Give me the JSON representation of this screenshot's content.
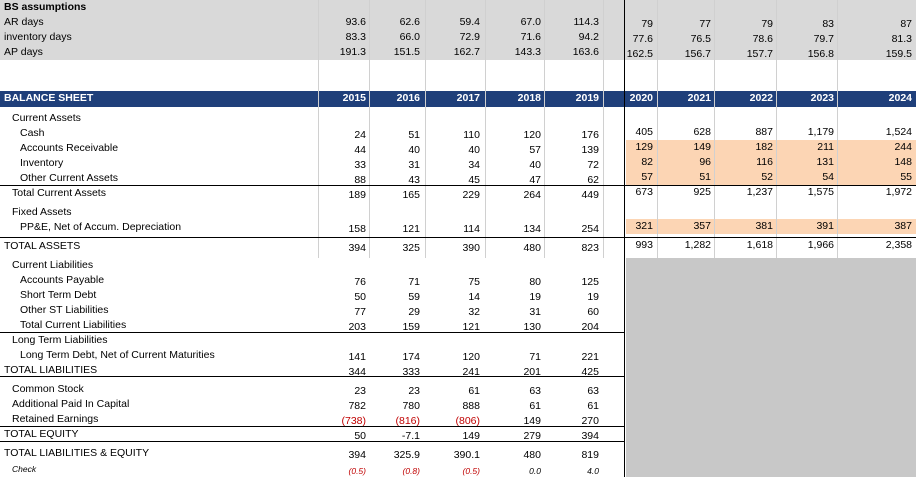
{
  "colors": {
    "assumption_bg": "#d9d9d9",
    "header_bg": "#1f3f7a",
    "projection_fill": "#fcd5b4",
    "gray_block": "#c8c8c8",
    "negative": "#c00000"
  },
  "assumptions": {
    "title": "BS assumptions",
    "rows": [
      {
        "label": "AR days",
        "values": [
          "93.6",
          "62.6",
          "59.4",
          "67.0",
          "114.3",
          "79",
          "77",
          "79",
          "83",
          "87"
        ]
      },
      {
        "label": "inventory days",
        "values": [
          "83.3",
          "66.0",
          "72.9",
          "71.6",
          "94.2",
          "77.6",
          "76.5",
          "78.6",
          "79.7",
          "81.3"
        ]
      },
      {
        "label": "AP days",
        "values": [
          "191.3",
          "151.5",
          "162.7",
          "143.3",
          "163.6",
          "162.5",
          "156.7",
          "157.7",
          "156.8",
          "159.5"
        ]
      }
    ]
  },
  "balance_sheet": {
    "title": "BALANCE SHEET",
    "years": [
      "2015",
      "2016",
      "2017",
      "2018",
      "2019",
      "2020",
      "2021",
      "2022",
      "2023",
      "2024"
    ],
    "rows": [
      {
        "label": "Current Assets",
        "values": []
      },
      {
        "label": "Cash",
        "values": [
          "24",
          "51",
          "110",
          "120",
          "176",
          "405",
          "628",
          "887",
          "1,179",
          "1,524"
        ]
      },
      {
        "label": "Accounts Receivable",
        "values": [
          "44",
          "40",
          "40",
          "57",
          "139",
          "129",
          "149",
          "182",
          "211",
          "244"
        ]
      },
      {
        "label": "Inventory",
        "values": [
          "33",
          "31",
          "34",
          "40",
          "72",
          "82",
          "96",
          "116",
          "131",
          "148"
        ]
      },
      {
        "label": "Other Current Assets",
        "values": [
          "88",
          "43",
          "45",
          "47",
          "62",
          "57",
          "51",
          "52",
          "54",
          "55"
        ]
      },
      {
        "label": "Total Current Assets",
        "values": [
          "189",
          "165",
          "229",
          "264",
          "449",
          "673",
          "925",
          "1,237",
          "1,575",
          "1,972"
        ]
      },
      {
        "label": "Fixed Assets",
        "values": []
      },
      {
        "label": "PP&E, Net of Accum. Depreciation",
        "values": [
          "158",
          "121",
          "114",
          "134",
          "254",
          "321",
          "357",
          "381",
          "391",
          "387"
        ]
      },
      {
        "label": "TOTAL ASSETS",
        "values": [
          "394",
          "325",
          "390",
          "480",
          "823",
          "993",
          "1,282",
          "1,618",
          "1,966",
          "2,358"
        ]
      },
      {
        "label": "Current Liabilities",
        "values": []
      },
      {
        "label": "Accounts Payable",
        "values": [
          "76",
          "71",
          "75",
          "80",
          "125"
        ]
      },
      {
        "label": "Short Term Debt",
        "values": [
          "50",
          "59",
          "14",
          "19",
          "19"
        ]
      },
      {
        "label": "Other ST Liabilities",
        "values": [
          "77",
          "29",
          "32",
          "31",
          "60"
        ]
      },
      {
        "label": "Total Current Liabilities",
        "values": [
          "203",
          "159",
          "121",
          "130",
          "204"
        ]
      },
      {
        "label": "Long Term Liabilities",
        "values": []
      },
      {
        "label": "Long Term Debt, Net of Current Maturities",
        "values": [
          "141",
          "174",
          "120",
          "71",
          "221"
        ]
      },
      {
        "label": "TOTAL LIABILITIES",
        "values": [
          "344",
          "333",
          "241",
          "201",
          "425"
        ]
      },
      {
        "label": "Common Stock",
        "values": [
          "23",
          "23",
          "61",
          "63",
          "63"
        ]
      },
      {
        "label": "Additional Paid In Capital",
        "values": [
          "782",
          "780",
          "888",
          "61",
          "61"
        ]
      },
      {
        "label": "Retained Earnings",
        "values": [
          "(738)",
          "(816)",
          "(806)",
          "149",
          "270"
        ]
      },
      {
        "label": "TOTAL EQUITY",
        "values": [
          "50",
          "-7.1",
          "149",
          "279",
          "394"
        ]
      },
      {
        "label": "TOTAL LIABILITIES & EQUITY",
        "values": [
          "394",
          "325.9",
          "390.1",
          "480",
          "819"
        ]
      },
      {
        "label": "Check",
        "values": [
          "(0.5)",
          "(0.8)",
          "(0.5)",
          "0.0",
          "4.0"
        ]
      }
    ]
  }
}
